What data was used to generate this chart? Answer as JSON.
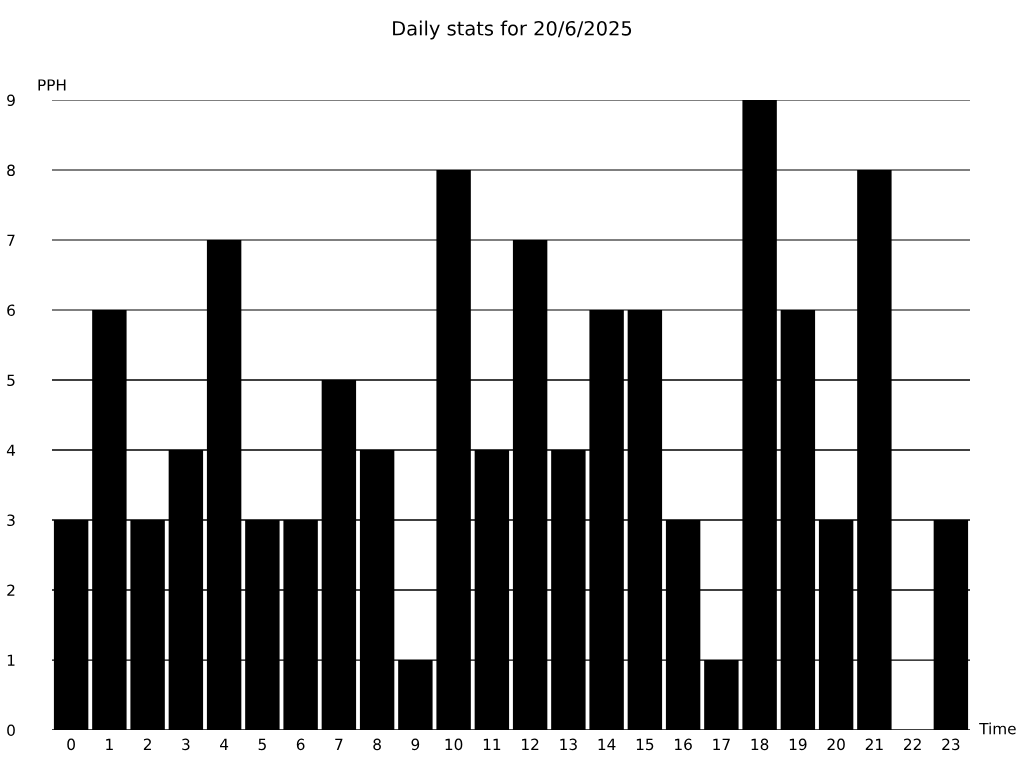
{
  "chart_data": {
    "type": "bar",
    "title": "Daily stats for 20/6/2025",
    "xlabel": "Time",
    "ylabel": "PPH",
    "categories": [
      "0",
      "1",
      "2",
      "3",
      "4",
      "5",
      "6",
      "7",
      "8",
      "9",
      "10",
      "11",
      "12",
      "13",
      "14",
      "15",
      "16",
      "17",
      "18",
      "19",
      "20",
      "21",
      "22",
      "23"
    ],
    "values": [
      3,
      6,
      3,
      4,
      7,
      3,
      3,
      5,
      4,
      1,
      8,
      4,
      7,
      4,
      6,
      6,
      3,
      1,
      9,
      6,
      3,
      8,
      0,
      3
    ],
    "color": "#000000",
    "ylim": [
      0,
      9
    ],
    "yticks": [
      0,
      1,
      2,
      3,
      4,
      5,
      6,
      7,
      8,
      9
    ],
    "grid": "y"
  }
}
